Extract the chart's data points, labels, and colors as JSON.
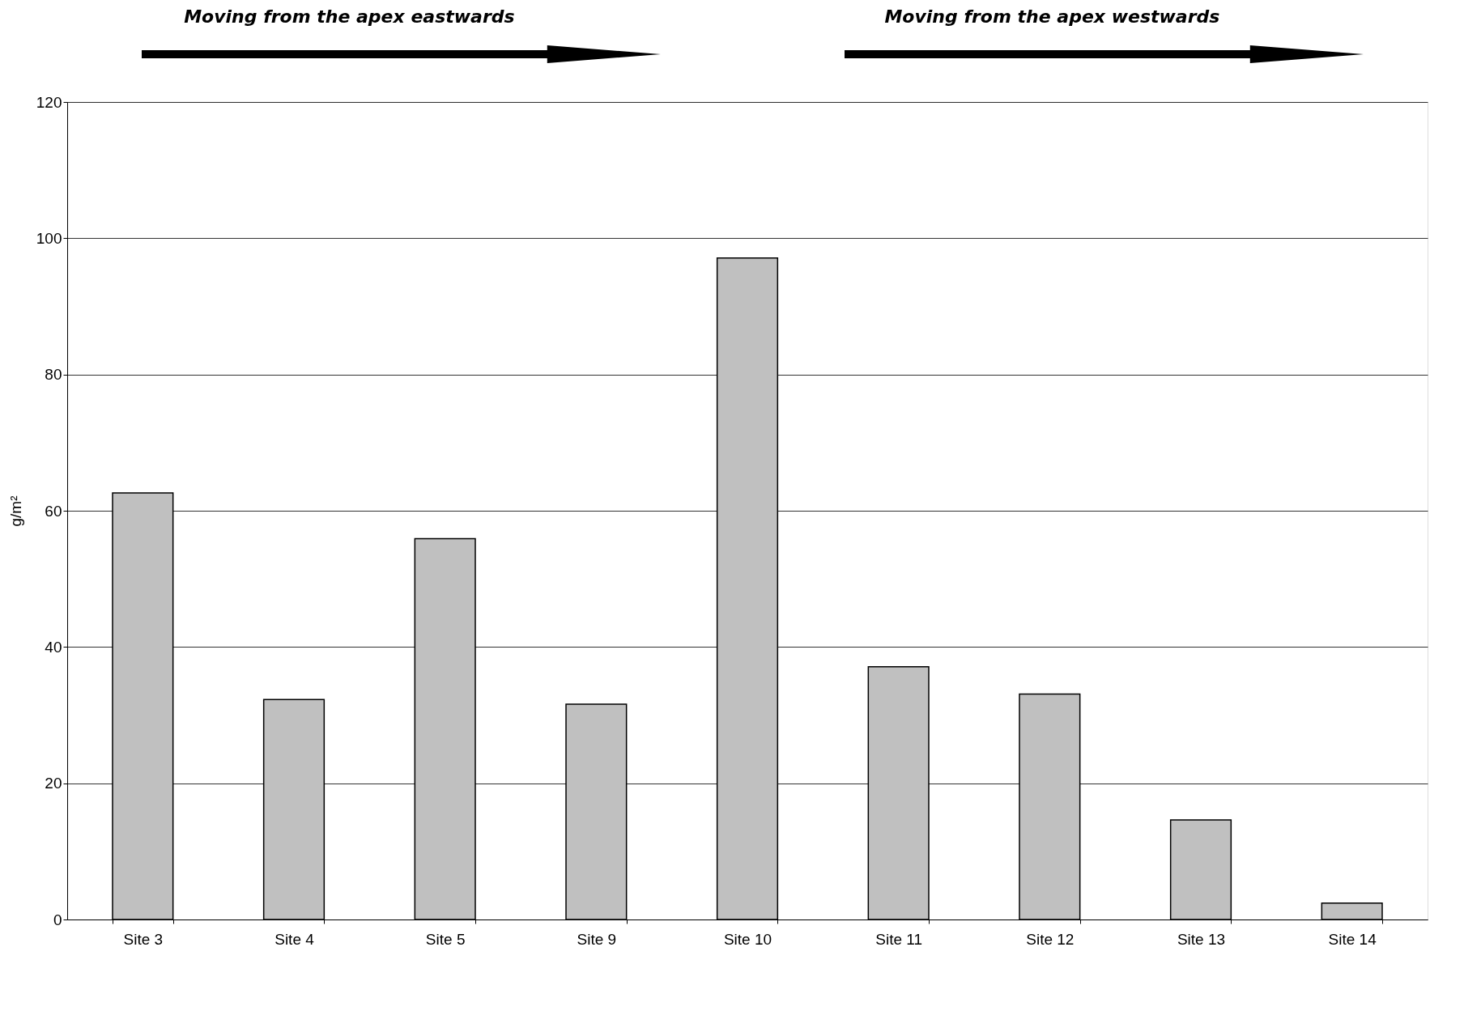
{
  "chart_data": {
    "type": "bar",
    "ylabel": "g/m²",
    "categories": [
      "Site 3",
      "Site 4",
      "Site 5",
      "Site 9",
      "Site 10",
      "Site 11",
      "Site 12",
      "Site 13",
      "Site 14"
    ],
    "values": [
      62.6,
      32.3,
      55.9,
      31.6,
      97.1,
      37.1,
      33.1,
      14.6,
      2.4
    ],
    "color": "#c0c0c0",
    "ylim": [
      0,
      120
    ],
    "yticks": [
      0,
      20,
      40,
      60,
      80,
      100,
      120
    ],
    "grid": "y",
    "annotations": [
      "Moving from the apex eastwards",
      "Moving from the apex westwards"
    ]
  }
}
